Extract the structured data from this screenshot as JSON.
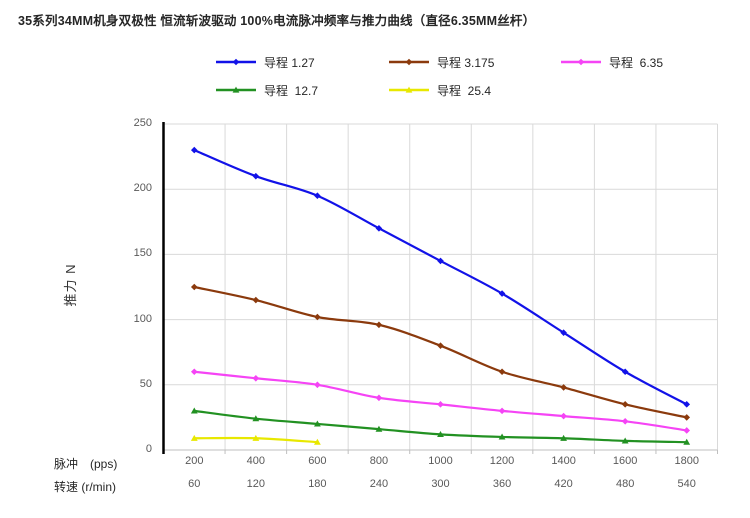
{
  "title": "35系列34MM机身双极性 恒流斩波驱动 100%电流脉冲频率与推力曲线（直径6.35MM丝杆）",
  "yaxis": {
    "title": "推力 N",
    "ticks": [
      0,
      50,
      100,
      150,
      200,
      250
    ]
  },
  "xaxis": {
    "row1_label": "脉冲　(pps)",
    "row2_label": "转速 (r/min)"
  },
  "colors": {
    "gridline": "#d9d9d9",
    "axis_line": "#000000",
    "x_axis_line": "#bfbfbf",
    "tick_text": "#595959"
  },
  "chart_data": {
    "type": "line",
    "title": "35系列34MM机身双极性 恒流斩波驱动 100%电流脉冲频率与推力曲线（直径6.35MM丝杆）",
    "xlabel_row1": "脉冲　(pps)",
    "xlabel_row2": "转速 (r/min)",
    "ylabel": "推力 N",
    "ylim": [
      0,
      250
    ],
    "grid": true,
    "legend_position": "top",
    "categories_pps": [
      "200",
      "400",
      "600",
      "800",
      "1000",
      "1200",
      "1400",
      "1600",
      "1800"
    ],
    "categories_rpm": [
      "60",
      "120",
      "180",
      "240",
      "300",
      "360",
      "420",
      "480",
      "540"
    ],
    "series": [
      {
        "name": "导程 1.27",
        "color": "#1212e8",
        "marker": "diamond",
        "values": [
          230,
          210,
          195,
          170,
          145,
          120,
          90,
          60,
          35
        ]
      },
      {
        "name": "导程 3.175",
        "color": "#8b3a0d",
        "marker": "diamond",
        "values": [
          125,
          115,
          102,
          96,
          80,
          60,
          48,
          35,
          25
        ]
      },
      {
        "name": "导程  6.35",
        "color": "#f544f5",
        "marker": "diamond",
        "values": [
          60,
          55,
          50,
          40,
          35,
          30,
          26,
          22,
          15
        ]
      },
      {
        "name": "导程  12.7",
        "color": "#229122",
        "marker": "triangle",
        "values": [
          30,
          24,
          20,
          16,
          12,
          10,
          9,
          7,
          6
        ]
      },
      {
        "name": "导程  25.4",
        "color": "#e8e800",
        "marker": "triangle",
        "values": [
          9,
          9,
          6,
          null,
          null,
          null,
          null,
          null,
          null
        ]
      }
    ]
  }
}
